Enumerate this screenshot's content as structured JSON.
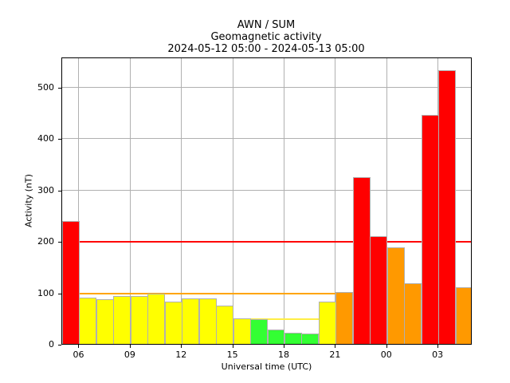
{
  "header": {
    "line1": "AWN / SUM",
    "line2": "Geomagnetic activity",
    "line3": "2024-05-12 05:00 - 2024-05-13 05:00"
  },
  "axes": {
    "xlabel": "Universal time (UTC)",
    "ylabel": "Activity (nT)",
    "yticks": [
      "0",
      "100",
      "200",
      "300",
      "400",
      "500"
    ],
    "xticks": [
      "06",
      "09",
      "12",
      "15",
      "18",
      "21",
      "00",
      "03"
    ]
  },
  "colors": {
    "quiet": "#33ff33",
    "unsettled": "#ffff00",
    "active": "#ff9900",
    "storm": "#ff0000",
    "grid": "#b0b0b0"
  },
  "chart_data": {
    "type": "bar",
    "title": "AWN / SUM Geomagnetic activity 2024-05-12 05:00 - 2024-05-13 05:00",
    "xlabel": "Universal time (UTC)",
    "ylabel": "Activity (nT)",
    "ylim": [
      0,
      560
    ],
    "grid": true,
    "categories": [
      "05",
      "06",
      "07",
      "08",
      "09",
      "10",
      "11",
      "12",
      "13",
      "14",
      "15",
      "16",
      "17",
      "18",
      "19",
      "20",
      "21",
      "22",
      "23",
      "00",
      "01",
      "02",
      "03",
      "04"
    ],
    "values": [
      239,
      90,
      87,
      93,
      93,
      98,
      82,
      88,
      88,
      74,
      50,
      48,
      28,
      22,
      20,
      82,
      101,
      324,
      209,
      188,
      118,
      445,
      532,
      110
    ],
    "bar_colors": [
      "storm",
      "unsettled",
      "unsettled",
      "unsettled",
      "unsettled",
      "unsettled",
      "unsettled",
      "unsettled",
      "unsettled",
      "unsettled",
      "unsettled",
      "quiet",
      "quiet",
      "quiet",
      "quiet",
      "unsettled",
      "active",
      "storm",
      "storm",
      "active",
      "active",
      "storm",
      "storm",
      "active"
    ],
    "thresholds": [
      {
        "level": 50,
        "color": "unsettled",
        "from_hour": 10,
        "to_hour": 15
      },
      {
        "level": 100,
        "color": "active",
        "from_hour": 1,
        "to_hour": 16
      },
      {
        "level": 200,
        "color": "storm",
        "from_hour": 1,
        "to_hour": 24
      }
    ]
  }
}
